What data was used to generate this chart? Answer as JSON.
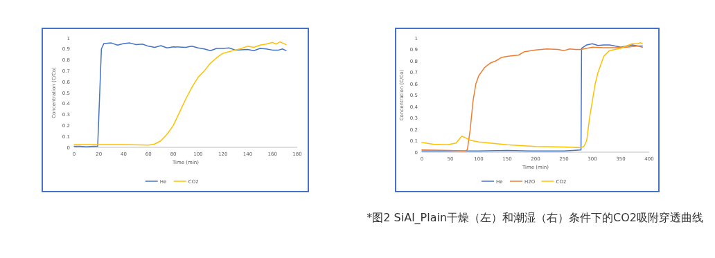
{
  "chart_data": [
    {
      "type": "line",
      "xlabel": "Time (min)",
      "ylabel": "Concentration (C/Co)",
      "xlim": [
        0,
        180
      ],
      "xticks": [
        0,
        20,
        40,
        60,
        80,
        100,
        120,
        140,
        160,
        180
      ],
      "ylim": [
        0,
        1
      ],
      "yticks": [
        0,
        0.1,
        0.2,
        0.3,
        0.4,
        0.5,
        0.6,
        0.7,
        0.8,
        0.9,
        1
      ],
      "legend": "bottom",
      "series": [
        {
          "name": "He",
          "color": "#4472c4",
          "x": [
            0,
            5,
            10,
            15,
            18,
            19,
            22,
            24,
            30,
            35,
            40,
            45,
            50,
            55,
            60,
            65,
            70,
            75,
            80,
            90,
            95,
            100,
            105,
            110,
            115,
            120,
            125,
            130,
            140,
            145,
            150,
            155,
            160,
            165,
            168,
            171
          ],
          "values": [
            0.01,
            0.01,
            0.005,
            0.01,
            0.01,
            0.01,
            0.9,
            0.95,
            0.955,
            0.935,
            0.95,
            0.955,
            0.94,
            0.945,
            0.925,
            0.915,
            0.93,
            0.91,
            0.92,
            0.915,
            0.925,
            0.91,
            0.9,
            0.885,
            0.905,
            0.905,
            0.91,
            0.89,
            0.895,
            0.885,
            0.905,
            0.9,
            0.89,
            0.89,
            0.9,
            0.885
          ]
        },
        {
          "name": "CO2",
          "color": "#ffc000",
          "x": [
            0,
            20,
            40,
            60,
            65,
            70,
            75,
            80,
            85,
            90,
            95,
            100,
            105,
            110,
            115,
            120,
            125,
            130,
            135,
            140,
            145,
            150,
            155,
            160,
            163,
            166,
            169,
            171
          ],
          "values": [
            0.025,
            0.025,
            0.025,
            0.02,
            0.03,
            0.06,
            0.12,
            0.2,
            0.32,
            0.44,
            0.55,
            0.64,
            0.7,
            0.77,
            0.82,
            0.86,
            0.875,
            0.89,
            0.905,
            0.925,
            0.915,
            0.935,
            0.945,
            0.96,
            0.945,
            0.965,
            0.95,
            0.94
          ]
        }
      ]
    },
    {
      "type": "line",
      "xlabel": "Time (min)",
      "ylabel": "Concentration (C/Co)",
      "xlim": [
        0,
        400
      ],
      "xticks": [
        0,
        50,
        100,
        150,
        200,
        250,
        300,
        350,
        400
      ],
      "ylim": [
        0,
        1
      ],
      "yticks": [
        0,
        0.1,
        0.2,
        0.3,
        0.4,
        0.5,
        0.6,
        0.7,
        0.8,
        0.9,
        1
      ],
      "legend": "bottom",
      "annotations": [
        "*图2 SiAl_Plain干燥（左）和潮湿（右）条件下的CO2吸附穿透曲线"
      ],
      "series": [
        {
          "name": "He",
          "color": "#4472c4",
          "x": [
            0,
            50,
            100,
            150,
            200,
            250,
            280,
            281,
            290,
            300,
            310,
            320,
            330,
            340,
            350,
            360,
            370,
            380,
            388
          ],
          "values": [
            0.01,
            0.01,
            0.01,
            0.015,
            0.01,
            0.01,
            0.02,
            0.91,
            0.94,
            0.95,
            0.935,
            0.94,
            0.94,
            0.93,
            0.92,
            0.93,
            0.94,
            0.93,
            0.93
          ]
        },
        {
          "name": "H2O",
          "color": "#ed7d31",
          "x": [
            0,
            50,
            75,
            80,
            85,
            90,
            95,
            100,
            110,
            120,
            130,
            140,
            150,
            160,
            170,
            180,
            200,
            220,
            240,
            250,
            260,
            270,
            280,
            300,
            320,
            340,
            360,
            380,
            388
          ],
          "values": [
            0.02,
            0.015,
            0.01,
            0.02,
            0.2,
            0.45,
            0.6,
            0.67,
            0.74,
            0.78,
            0.8,
            0.83,
            0.84,
            0.845,
            0.85,
            0.88,
            0.895,
            0.905,
            0.9,
            0.89,
            0.905,
            0.9,
            0.9,
            0.92,
            0.915,
            0.915,
            0.92,
            0.93,
            0.92
          ]
        },
        {
          "name": "CO2",
          "color": "#ffc000",
          "x": [
            0,
            20,
            45,
            60,
            70,
            75,
            85,
            100,
            150,
            200,
            250,
            280,
            285,
            290,
            295,
            300,
            305,
            310,
            320,
            330,
            340,
            350,
            360,
            370,
            380,
            385,
            388
          ],
          "values": [
            0.085,
            0.07,
            0.065,
            0.08,
            0.14,
            0.13,
            0.105,
            0.09,
            0.065,
            0.05,
            0.045,
            0.04,
            0.05,
            0.1,
            0.3,
            0.45,
            0.6,
            0.7,
            0.84,
            0.89,
            0.9,
            0.91,
            0.93,
            0.95,
            0.95,
            0.96,
            0.95
          ]
        }
      ]
    }
  ]
}
